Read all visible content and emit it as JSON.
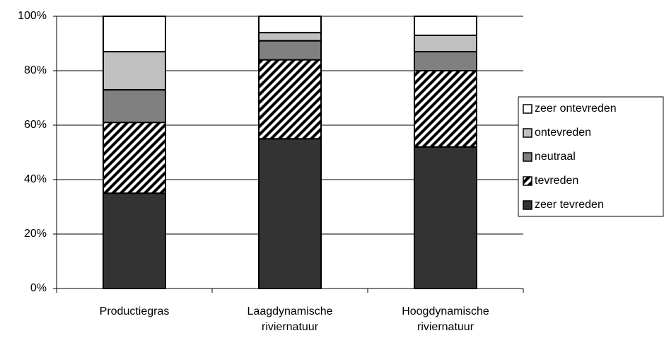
{
  "chart_data": {
    "type": "stacked-bar",
    "categories": [
      "Productiegras",
      "Laagdynamische riviernatuur",
      "Hoogdynamische riviernatuur"
    ],
    "series": [
      {
        "name": "zeer tevreden",
        "color": "#333333",
        "values": [
          35,
          55,
          52
        ]
      },
      {
        "name": "tevreden",
        "color": "#000000",
        "pattern": "diagonal-stripes",
        "values": [
          26,
          29,
          28
        ]
      },
      {
        "name": "neutraal",
        "color": "#808080",
        "values": [
          12,
          7,
          7
        ]
      },
      {
        "name": "ontevreden",
        "color": "#c0c0c0",
        "values": [
          14,
          3,
          6
        ]
      },
      {
        "name": "zeer ontevreden",
        "color": "#ffffff",
        "values": [
          13,
          6,
          7
        ]
      }
    ],
    "ylim": [
      0,
      100
    ],
    "yticks": [
      {
        "value": 0,
        "label": "0%"
      },
      {
        "value": 20,
        "label": "20%"
      },
      {
        "value": 40,
        "label": "40%"
      },
      {
        "value": 60,
        "label": "60%"
      },
      {
        "value": 80,
        "label": "80%"
      },
      {
        "value": 100,
        "label": "100%"
      }
    ],
    "grid": true,
    "legend": "right"
  }
}
